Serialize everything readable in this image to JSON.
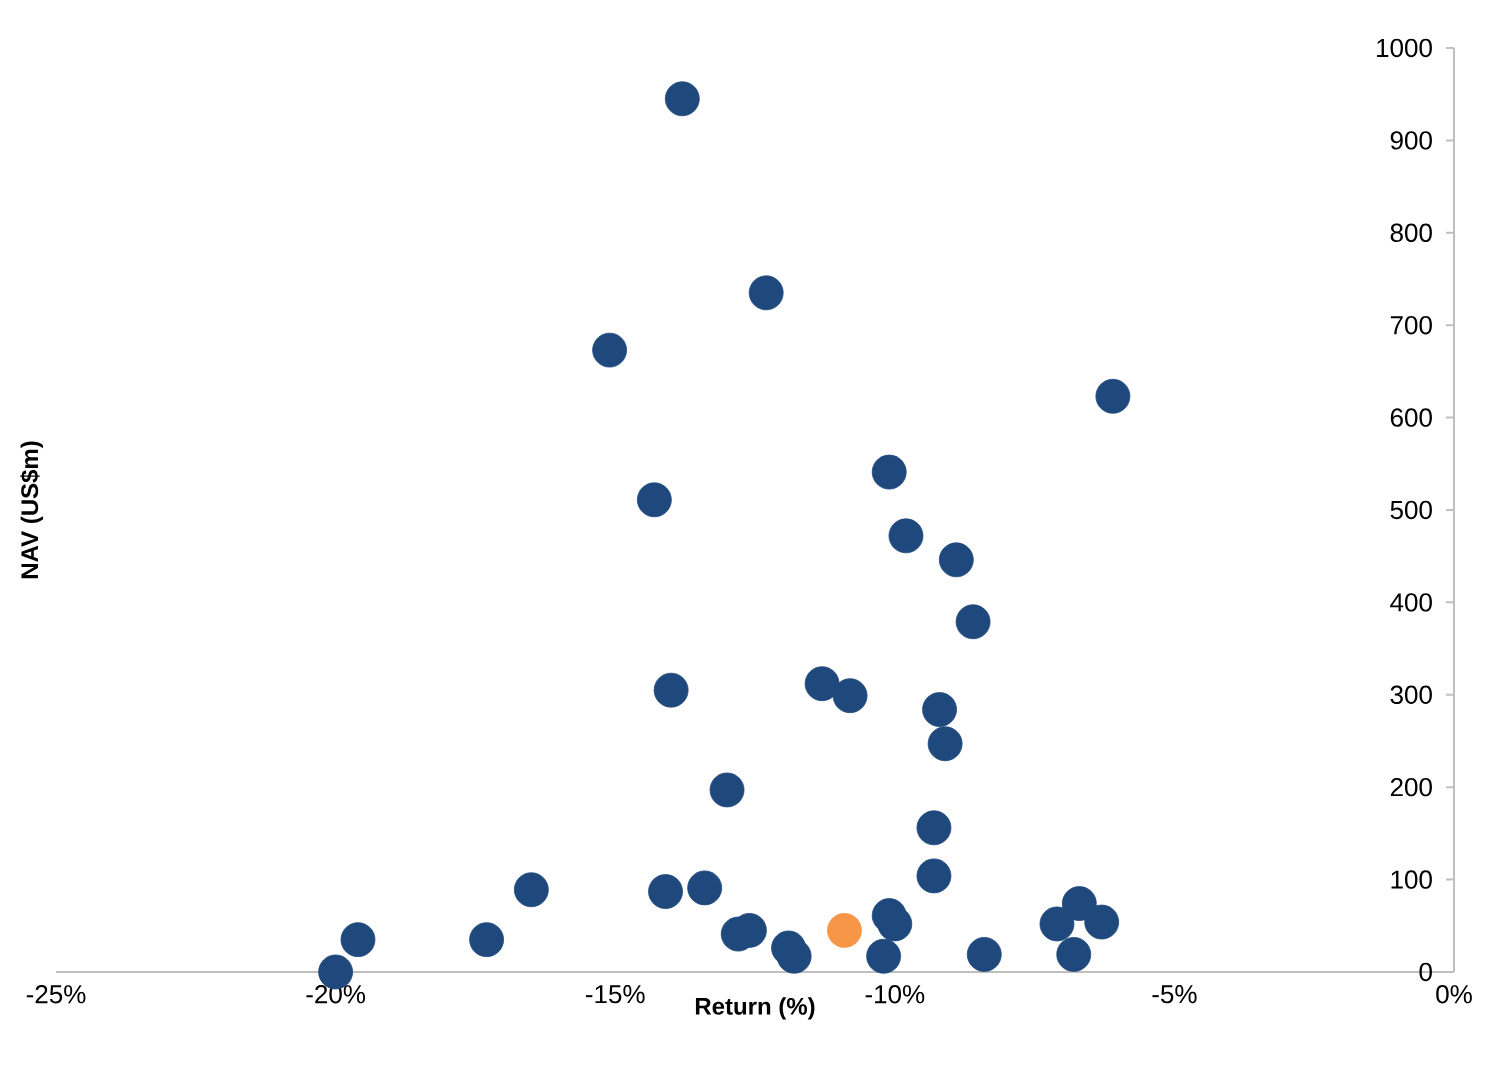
{
  "chart_data": {
    "type": "scatter",
    "xlabel": "Return (%)",
    "ylabel": "NAV (US$m)",
    "xlim": [
      -25,
      0
    ],
    "ylim": [
      0,
      1000
    ],
    "xticks": [
      {
        "value": -25,
        "label": "-25%"
      },
      {
        "value": -20,
        "label": "-20%"
      },
      {
        "value": -15,
        "label": "-15%"
      },
      {
        "value": -10,
        "label": "-10%"
      },
      {
        "value": -5,
        "label": "-5%"
      },
      {
        "value": 0,
        "label": "0%"
      }
    ],
    "yticks": [
      0,
      100,
      200,
      300,
      400,
      500,
      600,
      700,
      800,
      900,
      1000
    ],
    "series": [
      {
        "color": "#1f497d",
        "x": [
          -13.8,
          -12.3,
          -15.1,
          -6.1,
          -14.3,
          -10.1,
          -9.8,
          -8.9,
          -8.6,
          -14.0,
          -11.3,
          -10.8,
          -9.2,
          -9.1,
          -13.0,
          -9.3,
          -9.3,
          -16.5,
          -13.4,
          -14.1,
          -6.7,
          -7.1,
          -6.3,
          -10.1,
          -10.0,
          -12.6,
          -12.8,
          -11.9,
          -11.8,
          -10.2,
          -8.4,
          -6.8,
          -19.6,
          -17.3,
          -20.0
        ],
        "values": [
          945,
          735,
          673,
          623,
          511,
          541,
          472,
          446,
          379,
          305,
          312,
          299,
          284,
          247,
          197,
          156,
          104,
          89,
          91,
          87,
          74,
          52,
          54,
          61,
          52,
          45,
          41,
          26,
          17,
          17,
          19,
          19,
          35,
          35,
          0
        ]
      },
      {
        "color": "#f79646",
        "x": [
          -10.9
        ],
        "values": [
          45
        ]
      }
    ]
  }
}
